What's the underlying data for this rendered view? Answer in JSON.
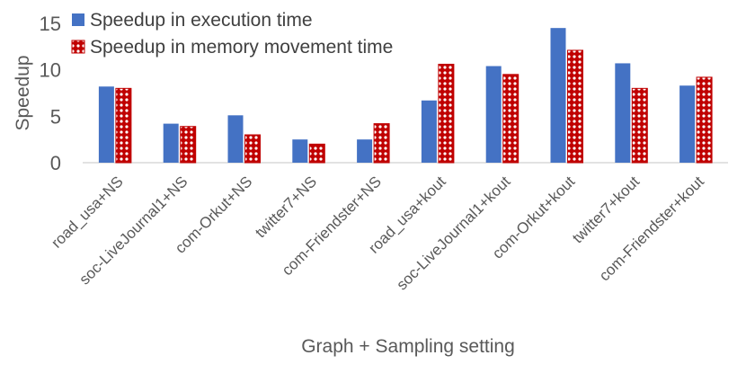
{
  "chart_data": {
    "type": "bar",
    "title": "",
    "xlabel": "Graph + Sampling setting",
    "ylabel": "Speedup",
    "ylim": [
      0,
      15
    ],
    "yticks": [
      0,
      5,
      10,
      15
    ],
    "grid": false,
    "legend_position": "top-left",
    "categories": [
      "road_usa+NS",
      "soc-LiveJournal1+NS",
      "com-Orkut+NS",
      "twitter7+NS",
      "com-Friendster+NS",
      "road_usa+kout",
      "soc-LiveJournal1+kout",
      "com-Orkut+kout",
      "twitter7+kout",
      "com-Friendster+kout"
    ],
    "series": [
      {
        "name": "Speedup in execution time",
        "color": "#4472C4",
        "pattern": "solid",
        "values": [
          8.2,
          4.2,
          5.1,
          2.5,
          2.5,
          6.7,
          10.4,
          14.5,
          10.7,
          8.3
        ]
      },
      {
        "name": "Speedup in memory movement time",
        "color": "#C00000",
        "pattern": "dotted",
        "values": [
          8.0,
          3.9,
          3.0,
          2.0,
          4.2,
          10.6,
          9.5,
          12.1,
          8.0,
          9.2
        ]
      }
    ]
  }
}
